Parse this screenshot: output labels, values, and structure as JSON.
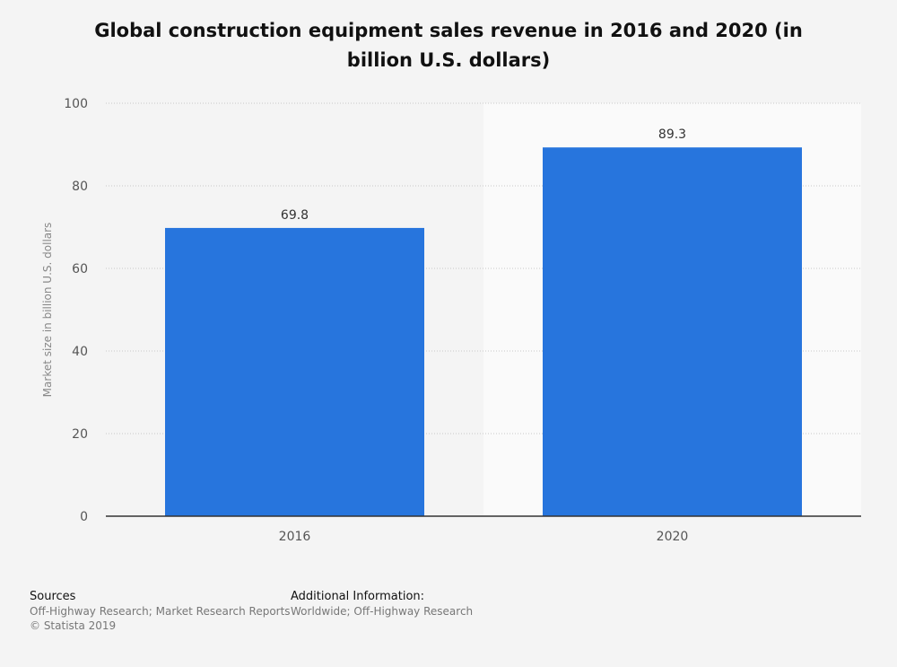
{
  "chart_data": {
    "type": "bar",
    "title": "Global construction equipment sales revenue in 2016 and 2020 (in billion U.S. dollars)",
    "xlabel": "",
    "ylabel": "Market size in billion U.S. dollars",
    "categories": [
      "2016",
      "2020"
    ],
    "values": [
      69.8,
      89.3
    ],
    "data_labels": [
      "69.8",
      "89.3"
    ],
    "ylim": [
      0,
      100
    ],
    "yticks": [
      0,
      20,
      40,
      60,
      80,
      100
    ],
    "ytick_labels": [
      "0",
      "20",
      "40",
      "60",
      "80",
      "100"
    ],
    "grid": true,
    "bar_color": "#2775dd",
    "highlight_category": "2020"
  },
  "footer": {
    "sources_heading": "Sources",
    "sources_text": "Off-Highway Research; Market Research Reports",
    "copyright": "© Statista 2019",
    "additional_heading": "Additional Information:",
    "additional_text": "Worldwide; Off-Highway Research"
  }
}
